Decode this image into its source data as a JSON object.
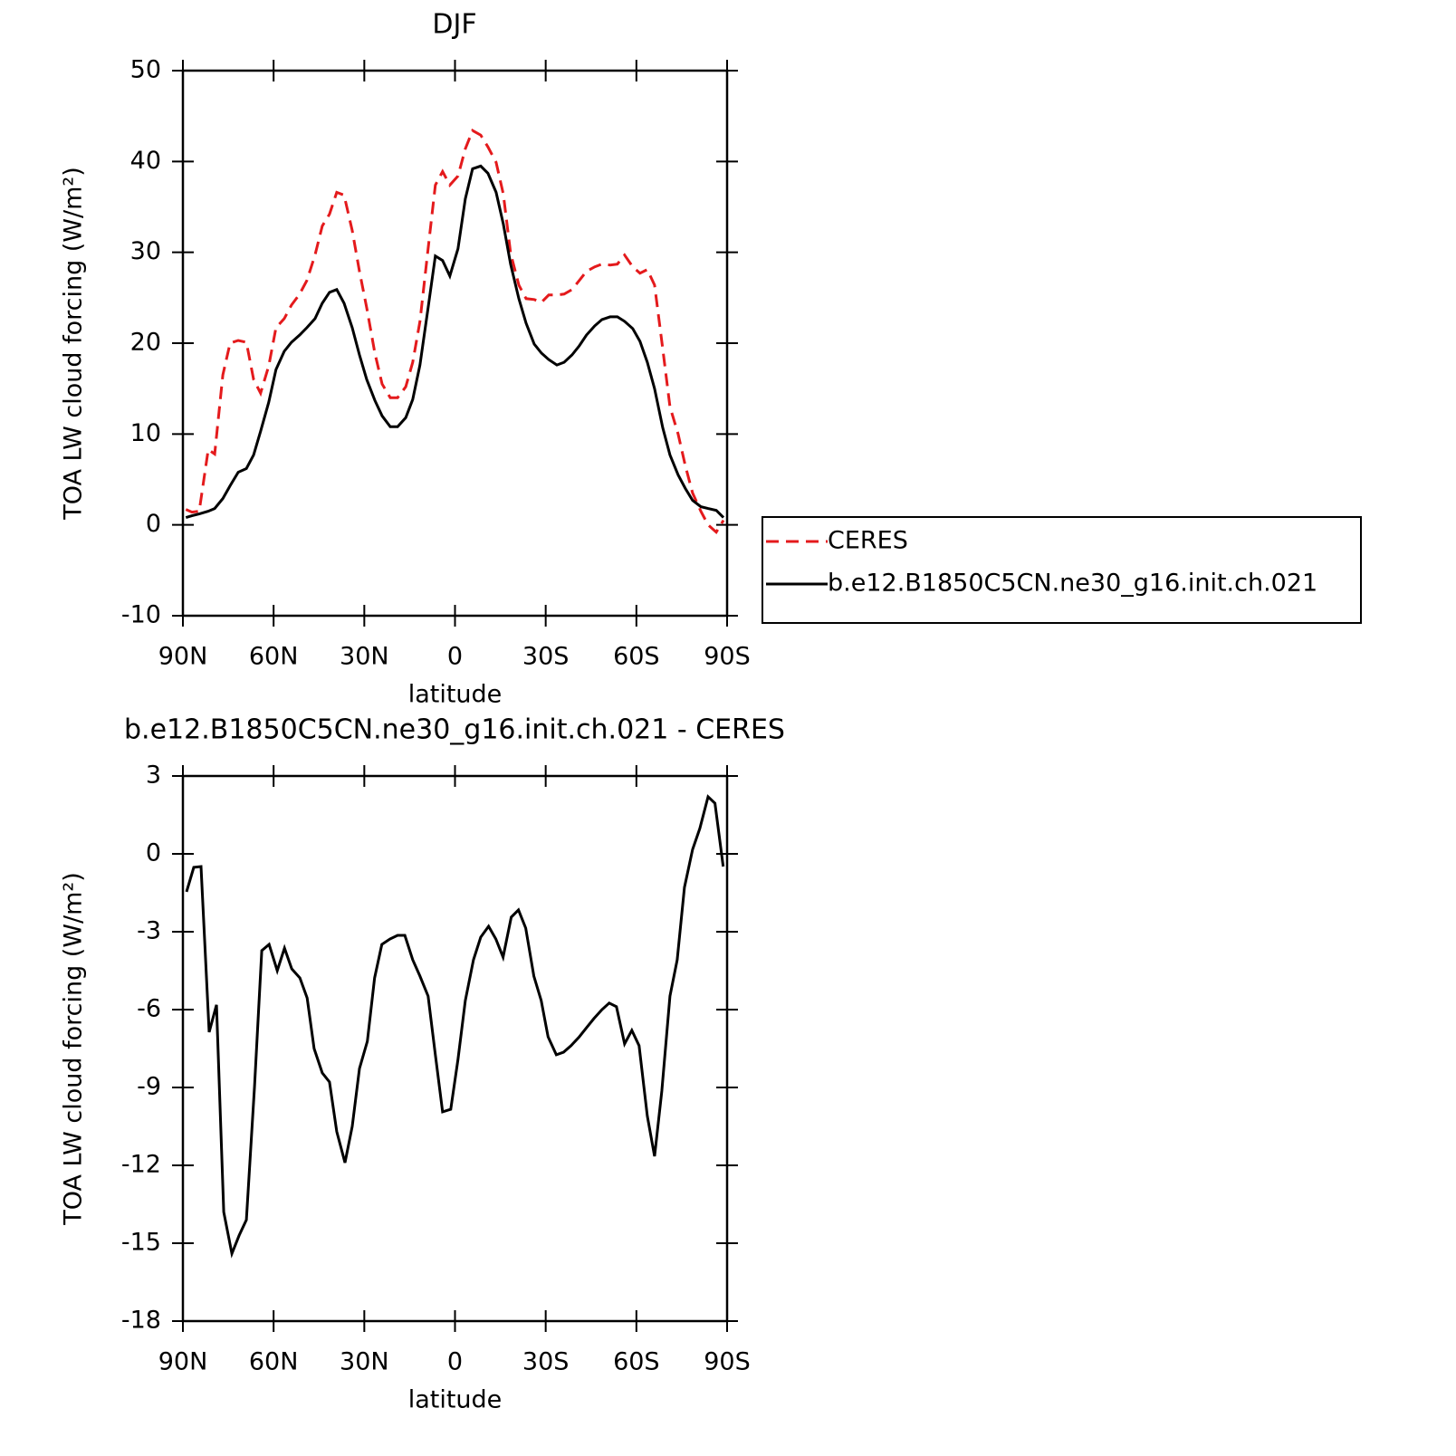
{
  "chart_data": [
    {
      "type": "line",
      "title": "DJF",
      "xlabel": "latitude",
      "ylabel": "TOA LW cloud forcing (W/m²)",
      "x": [
        89,
        87,
        84.6,
        81.6,
        79.5,
        76.8,
        74.4,
        71.7,
        69,
        66.6,
        64.3,
        61.6,
        59.2,
        56.5,
        54.1,
        51.4,
        49,
        46.3,
        43.9,
        41.5,
        39.1,
        36.7,
        34,
        31.6,
        29.2,
        26.5,
        24.1,
        21.4,
        19,
        16.3,
        14,
        11.6,
        8.9,
        6.5,
        4.1,
        1.7,
        -1,
        -3.4,
        -5.8,
        -8.5,
        -10.9,
        -13.6,
        -16,
        -18.4,
        -21.1,
        -23.5,
        -26.2,
        -28.6,
        -31,
        -33.7,
        -36.1,
        -38.7,
        -41.1,
        -43.5,
        -46.2,
        -48.6,
        -51.3,
        -53.7,
        -56.1,
        -58.8,
        -61.2,
        -63.6,
        -66,
        -68.7,
        -71.1,
        -73.8,
        -76.2,
        -78.6,
        -81.3,
        -83.7,
        -86.4,
        -88.8
      ],
      "series": [
        {
          "name": "CERES",
          "color": "#e41a1c",
          "linestyle": "dashed",
          "values": [
            1.7,
            1.4,
            1.5,
            8.3,
            7.8,
            16.5,
            20,
            20.3,
            20.1,
            16,
            14.5,
            17.5,
            21.7,
            22.7,
            24.2,
            25.4,
            26.9,
            29.7,
            32.9,
            34.2,
            36.6,
            36.3,
            32.4,
            27.9,
            23.9,
            18.9,
            15.5,
            14,
            14,
            15.2,
            17.9,
            22.4,
            30.4,
            37.4,
            38.9,
            37.4,
            38.4,
            41.4,
            43.4,
            42.9,
            41.6,
            39.9,
            36.4,
            29.9,
            26.4,
            24.9,
            24.8,
            24.5,
            25.3,
            25.3,
            25.4,
            25.9,
            26.9,
            27.9,
            28.4,
            28.7,
            28.6,
            28.7,
            29.7,
            28.4,
            27.7,
            28.1,
            26.4,
            19.4,
            13,
            10,
            6.5,
            3.5,
            1.5,
            0,
            -0.8,
            0.5
          ]
        },
        {
          "name": "b.e12.B1850C5CN.ne30_g16.init.ch.021",
          "color": "#000000",
          "linestyle": "solid",
          "values": [
            0.8,
            1.0,
            1.2,
            1.5,
            1.8,
            2.9,
            4.3,
            5.8,
            6.2,
            7.7,
            10.3,
            13.5,
            17.1,
            19.1,
            20.1,
            20.9,
            21.7,
            22.7,
            24.4,
            25.6,
            25.9,
            24.4,
            21.7,
            18.7,
            16,
            13.7,
            12,
            10.8,
            10.8,
            11.8,
            13.8,
            17.6,
            23.9,
            29.6,
            29.1,
            27.4,
            30.4,
            35.9,
            39.2,
            39.5,
            38.7,
            36.6,
            33.1,
            28.7,
            24.9,
            22.2,
            19.9,
            18.9,
            18.2,
            17.6,
            17.9,
            18.7,
            19.7,
            20.9,
            21.9,
            22.6,
            22.9,
            22.9,
            22.4,
            21.6,
            20.2,
            17.9,
            15,
            10.7,
            7.7,
            5.5,
            4,
            2.7,
            2,
            1.8,
            1.6,
            0.8
          ]
        }
      ],
      "xlim": [
        90,
        -90
      ],
      "xticks": [
        {
          "value": 90,
          "label": "90N"
        },
        {
          "value": 60,
          "label": "60N"
        },
        {
          "value": 30,
          "label": "30N"
        },
        0,
        {
          "value": -30,
          "label": "30S"
        },
        {
          "value": -60,
          "label": "60S"
        },
        {
          "value": -90,
          "label": "90S"
        }
      ],
      "ylim": [
        -10,
        50
      ],
      "yticks": [
        -10,
        0,
        10,
        20,
        30,
        40,
        50
      ],
      "legend": "right"
    },
    {
      "type": "line",
      "title": "b.e12.B1850C5CN.ne30_g16.init.ch.021 - CERES",
      "xlabel": "latitude",
      "ylabel": "TOA LW cloud forcing (W/m²)",
      "x": [
        88.8,
        86.4,
        84,
        81.3,
        78.9,
        76.5,
        73.8,
        71.4,
        69,
        66.3,
        63.9,
        61.5,
        58.8,
        56.4,
        54,
        51.3,
        48.9,
        46.6,
        43.9,
        41.5,
        39.1,
        36.4,
        34,
        31.6,
        29,
        26.6,
        24.2,
        21.5,
        19,
        16.6,
        14,
        11.6,
        8.9,
        6.5,
        4.1,
        1.4,
        -1,
        -3.4,
        -6.1,
        -8.5,
        -11.1,
        -13.5,
        -15.9,
        -18.6,
        -21,
        -23.4,
        -26.1,
        -28.5,
        -30.8,
        -33.5,
        -35.9,
        -38.4,
        -41.1,
        -43.5,
        -45.9,
        -48.6,
        -51,
        -53.4,
        -56.1,
        -58.5,
        -60.9,
        -63.6,
        -66,
        -68.4,
        -71.1,
        -73.5,
        -75.9,
        -78.6,
        -81,
        -83.7,
        -86,
        -88.7
      ],
      "series": [
        {
          "color": "#000000",
          "linestyle": "solid",
          "values": [
            -1.46,
            -0.52,
            -0.49,
            -6.87,
            -5.82,
            -13.8,
            -15.4,
            -14.7,
            -14.1,
            -8.96,
            -3.73,
            -3.49,
            -4.5,
            -3.63,
            -4.43,
            -4.78,
            -5.55,
            -7.5,
            -8.44,
            -8.79,
            -10.7,
            -11.9,
            -10.5,
            -8.27,
            -7.22,
            -4.78,
            -3.49,
            -3.28,
            -3.14,
            -3.14,
            -4.08,
            -4.71,
            -5.48,
            -7.74,
            -9.94,
            -9.84,
            -7.92,
            -5.65,
            -4.08,
            -3.21,
            -2.79,
            -3.28,
            -3.98,
            -2.44,
            -2.16,
            -2.86,
            -4.71,
            -5.65,
            -7.05,
            -7.74,
            -7.64,
            -7.39,
            -7.05,
            -6.7,
            -6.35,
            -6,
            -5.75,
            -5.89,
            -7.32,
            -6.8,
            -7.39,
            -10.1,
            -11.65,
            -9.14,
            -5.48,
            -4.08,
            -1.29,
            0.17,
            0.98,
            2.2,
            1.95,
            -0.49
          ]
        }
      ],
      "xlim": [
        90,
        -90
      ],
      "xticks": [
        {
          "value": 90,
          "label": "90N"
        },
        {
          "value": 60,
          "label": "60N"
        },
        {
          "value": 30,
          "label": "30N"
        },
        0,
        {
          "value": -30,
          "label": "30S"
        },
        {
          "value": -60,
          "label": "60S"
        },
        {
          "value": -90,
          "label": "90S"
        }
      ],
      "ylim": [
        -18,
        3
      ],
      "yticks": [
        -18,
        -15,
        -12,
        -9,
        -6,
        -3,
        0,
        3
      ]
    }
  ]
}
